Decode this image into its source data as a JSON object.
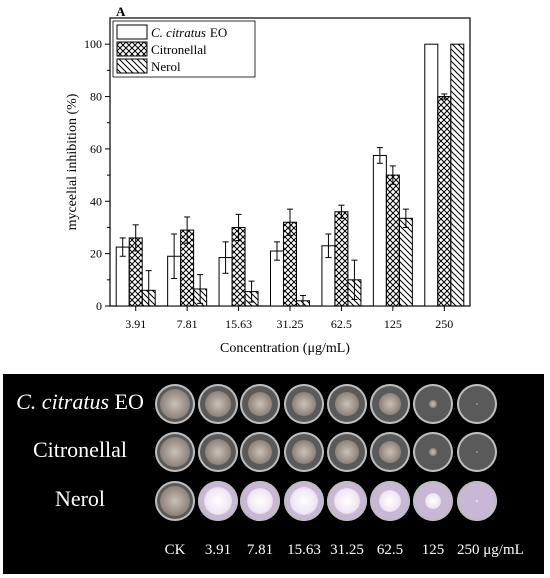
{
  "panel_label": "A",
  "chart_data": {
    "type": "bar",
    "categories": [
      "3.91",
      "7.81",
      "15.63",
      "31.25",
      "62.5",
      "125",
      "250"
    ],
    "series": [
      {
        "name_prefix": "C. citratus",
        "name_suffix": "EO",
        "pattern": "empty",
        "values": [
          22.5,
          19,
          18.5,
          21,
          23,
          57.5,
          100
        ],
        "errors": [
          3.5,
          8.5,
          6,
          3.5,
          4.5,
          3,
          0
        ]
      },
      {
        "name": "Citronellal",
        "pattern": "crosshatch",
        "values": [
          26,
          29,
          30,
          32,
          36,
          50,
          80
        ],
        "errors": [
          5,
          5,
          5,
          5,
          2.5,
          3.5,
          1
        ]
      },
      {
        "name": "Nerol",
        "pattern": "diagonal",
        "values": [
          6,
          6.5,
          5.5,
          2,
          10,
          33.5,
          100
        ],
        "errors": [
          7.5,
          5.5,
          4,
          2,
          7.5,
          3.5,
          0
        ]
      }
    ],
    "xlabel": "Concentration (μg/mL)",
    "ylabel": "myceelial inhibition (%)",
    "ylim": [
      0,
      110
    ],
    "yticks": [
      "0",
      "20",
      "40",
      "60",
      "80",
      "100"
    ],
    "legend_position": "top-left",
    "grid": false
  },
  "photo": {
    "row_labels": [
      {
        "italic": "C. citratus",
        "rest": " EO"
      },
      {
        "italic": "",
        "rest": "Citronellal"
      },
      {
        "italic": "",
        "rest": "Nerol"
      }
    ],
    "column_labels": [
      "CK",
      "3.91",
      "7.81",
      "15.63",
      "31.25",
      "62.5",
      "125",
      "250 μg/mL"
    ],
    "dish_colors": {
      "plate": "#5a5a5a",
      "rim": "#bdbdbd",
      "colony": "#9a8f86",
      "nerol_plate": "#c9b7d6"
    }
  }
}
